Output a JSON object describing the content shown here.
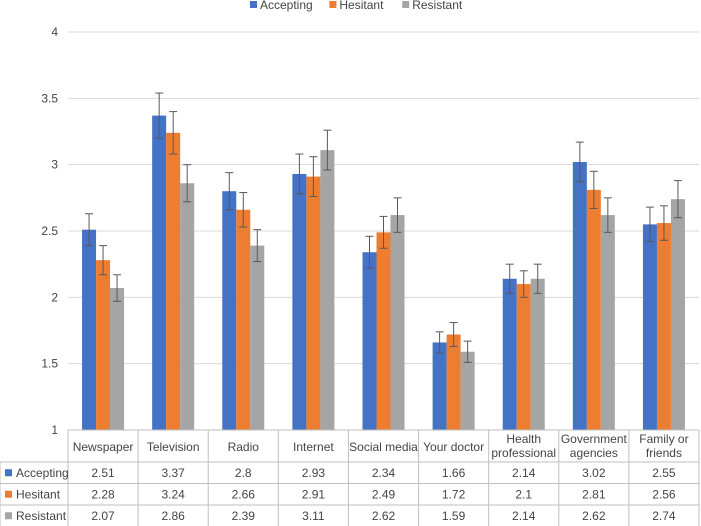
{
  "chart_data": {
    "type": "bar",
    "title": "",
    "xlabel": "",
    "ylabel": "",
    "ylim": [
      1,
      4
    ],
    "yticks": [
      "1",
      "1.5",
      "2",
      "2.5",
      "3",
      "3.5",
      "4"
    ],
    "ytick_values": [
      1,
      1.5,
      2,
      2.5,
      3,
      3.5,
      4
    ],
    "legend_position": "top-center",
    "grid": true,
    "categories": [
      [
        "Newspaper"
      ],
      [
        "Television"
      ],
      [
        "Radio"
      ],
      [
        "Internet"
      ],
      [
        "Social media"
      ],
      [
        "Your doctor"
      ],
      [
        "Health",
        "professional"
      ],
      [
        "Government",
        "agencies"
      ],
      [
        "Family or",
        "friends"
      ]
    ],
    "series": [
      {
        "name": "Accepting",
        "color": "#4472C4",
        "values": [
          2.51,
          3.37,
          2.8,
          2.93,
          2.34,
          1.66,
          2.14,
          3.02,
          2.55
        ],
        "labels": [
          "2.51",
          "3.37",
          "2.8",
          "2.93",
          "2.34",
          "1.66",
          "2.14",
          "3.02",
          "2.55"
        ],
        "error": [
          0.12,
          0.17,
          0.14,
          0.15,
          0.12,
          0.08,
          0.11,
          0.15,
          0.13
        ]
      },
      {
        "name": "Hesitant",
        "color": "#ED7D31",
        "values": [
          2.28,
          3.24,
          2.66,
          2.91,
          2.49,
          1.72,
          2.1,
          2.81,
          2.56
        ],
        "labels": [
          "2.28",
          "3.24",
          "2.66",
          "2.91",
          "2.49",
          "1.72",
          "2.1",
          "2.81",
          "2.56"
        ],
        "error": [
          0.11,
          0.16,
          0.13,
          0.15,
          0.12,
          0.09,
          0.1,
          0.14,
          0.13
        ]
      },
      {
        "name": "Resistant",
        "color": "#A5A5A5",
        "values": [
          2.07,
          2.86,
          2.39,
          3.11,
          2.62,
          1.59,
          2.14,
          2.62,
          2.74
        ],
        "labels": [
          "2.07",
          "2.86",
          "2.39",
          "3.11",
          "2.62",
          "1.59",
          "2.14",
          "2.62",
          "2.74"
        ],
        "error": [
          0.1,
          0.14,
          0.12,
          0.15,
          0.13,
          0.08,
          0.11,
          0.13,
          0.14
        ]
      }
    ]
  }
}
